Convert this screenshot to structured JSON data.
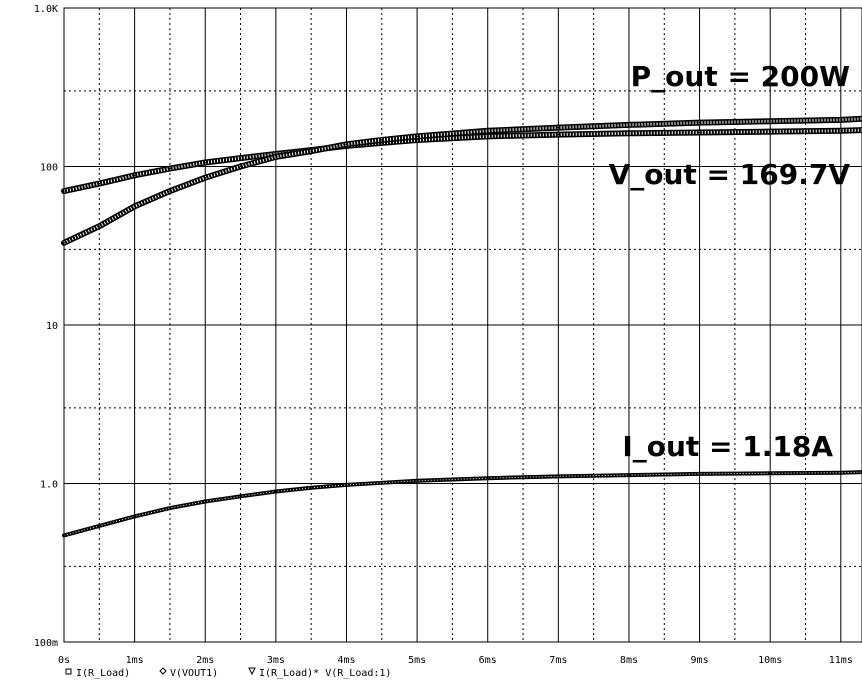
{
  "chart_data": {
    "type": "line",
    "title": "",
    "xlabel": "",
    "ylabel": "",
    "x_unit": "ms",
    "xlim": [
      0,
      11.3
    ],
    "ylim": [
      0.1,
      1000
    ],
    "y_scale": "log",
    "grid": true,
    "x_ticks": [
      "0s",
      "1ms",
      "2ms",
      "3ms",
      "4ms",
      "5ms",
      "6ms",
      "7ms",
      "8ms",
      "9ms",
      "10ms",
      "11ms"
    ],
    "y_ticks": [
      {
        "value": 0.1,
        "label": "100m"
      },
      {
        "value": 1,
        "label": "1.0"
      },
      {
        "value": 10,
        "label": "10"
      },
      {
        "value": 100,
        "label": "100"
      },
      {
        "value": 1000,
        "label": "1.0K"
      }
    ],
    "series": [
      {
        "name": "I(R_Load)",
        "marker": "square",
        "x": [
          0,
          0.5,
          1,
          1.5,
          2,
          2.5,
          3,
          3.5,
          4,
          4.5,
          5,
          6,
          7,
          8,
          9,
          10,
          11,
          11.3
        ],
        "y": [
          0.47,
          0.54,
          0.62,
          0.7,
          0.77,
          0.83,
          0.89,
          0.94,
          0.98,
          1.01,
          1.04,
          1.08,
          1.11,
          1.13,
          1.15,
          1.16,
          1.17,
          1.18
        ]
      },
      {
        "name": "V(VOUT1)",
        "marker": "diamond",
        "x": [
          0,
          0.5,
          1,
          1.5,
          2,
          2.5,
          3,
          3.5,
          4,
          4.5,
          5,
          6,
          7,
          8,
          9,
          10,
          11,
          11.3
        ],
        "y": [
          70,
          78,
          88,
          97,
          106,
          113,
          120,
          127,
          135,
          141,
          147,
          155,
          159,
          162,
          164,
          166,
          168,
          169.7
        ]
      },
      {
        "name": "I(R_Load)* V(R_Load:1)",
        "marker": "triangle",
        "x": [
          0,
          0.5,
          1,
          1.5,
          2,
          2.5,
          3,
          3.5,
          4,
          4.5,
          5,
          6,
          7,
          8,
          9,
          10,
          11,
          11.3
        ],
        "y": [
          33,
          42,
          56,
          70,
          85,
          100,
          115,
          125,
          138,
          147,
          155,
          168,
          176,
          183,
          189,
          193,
          197,
          200
        ]
      }
    ],
    "annotations": [
      "P_out = 200W",
      "V_out = 169.7V",
      "I_out = 1.18A"
    ]
  }
}
